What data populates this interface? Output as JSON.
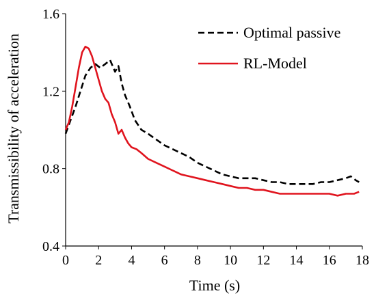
{
  "chart_data": {
    "type": "line",
    "title": "",
    "xlabel": "Time (s)",
    "ylabel": "Transmissibility of acceleration",
    "xlim": [
      0,
      18
    ],
    "ylim": [
      0.4,
      1.6
    ],
    "x_ticks": [
      0,
      2,
      4,
      6,
      8,
      10,
      12,
      14,
      16,
      18
    ],
    "x_tick_labels": [
      "0",
      "2",
      "4",
      "6",
      "8",
      "10",
      "12",
      "14",
      "16",
      "18"
    ],
    "y_ticks": [
      0.4,
      0.8,
      1.2,
      1.6
    ],
    "y_tick_labels": [
      "0.4",
      "0.8",
      "1.2",
      "1.6"
    ],
    "grid": false,
    "legend_position": "top-right",
    "series": [
      {
        "name": "Optimal passive",
        "color": "#000000",
        "style": "dashed",
        "x": [
          0,
          0.3,
          0.6,
          0.9,
          1.2,
          1.5,
          1.8,
          2.1,
          2.4,
          2.7,
          3.0,
          3.2,
          3.4,
          3.6,
          3.9,
          4.2,
          4.6,
          5.0,
          5.5,
          6.0,
          6.5,
          7.0,
          7.5,
          8.0,
          8.5,
          9.0,
          9.5,
          10.0,
          10.5,
          11.0,
          11.5,
          12.0,
          12.5,
          13.0,
          13.5,
          14.0,
          14.5,
          15.0,
          15.5,
          16.0,
          16.5,
          17.0,
          17.3,
          17.6,
          17.8
        ],
        "y": [
          0.98,
          1.05,
          1.12,
          1.2,
          1.28,
          1.32,
          1.34,
          1.32,
          1.34,
          1.36,
          1.3,
          1.33,
          1.24,
          1.18,
          1.12,
          1.05,
          1.0,
          0.98,
          0.95,
          0.92,
          0.9,
          0.88,
          0.86,
          0.83,
          0.81,
          0.79,
          0.77,
          0.76,
          0.75,
          0.75,
          0.75,
          0.74,
          0.73,
          0.73,
          0.72,
          0.72,
          0.72,
          0.72,
          0.73,
          0.73,
          0.74,
          0.75,
          0.76,
          0.74,
          0.73
        ]
      },
      {
        "name": "RL-Model",
        "color": "#e0141e",
        "style": "solid",
        "x": [
          0,
          0.2,
          0.4,
          0.6,
          0.8,
          1.0,
          1.2,
          1.4,
          1.6,
          1.8,
          2.0,
          2.2,
          2.4,
          2.6,
          2.8,
          3.0,
          3.2,
          3.4,
          3.6,
          3.8,
          4.0,
          4.3,
          4.6,
          5.0,
          5.5,
          6.0,
          6.5,
          7.0,
          7.5,
          8.0,
          8.5,
          9.0,
          9.5,
          10.0,
          10.5,
          11.0,
          11.5,
          12.0,
          12.5,
          13.0,
          13.5,
          14.0,
          14.5,
          15.0,
          15.5,
          16.0,
          16.5,
          17.0,
          17.5,
          17.8
        ],
        "y": [
          1.0,
          1.04,
          1.12,
          1.22,
          1.32,
          1.4,
          1.43,
          1.42,
          1.38,
          1.32,
          1.26,
          1.2,
          1.16,
          1.14,
          1.08,
          1.04,
          0.98,
          1.0,
          0.96,
          0.93,
          0.91,
          0.9,
          0.88,
          0.85,
          0.83,
          0.81,
          0.79,
          0.77,
          0.76,
          0.75,
          0.74,
          0.73,
          0.72,
          0.71,
          0.7,
          0.7,
          0.69,
          0.69,
          0.68,
          0.67,
          0.67,
          0.67,
          0.67,
          0.67,
          0.67,
          0.67,
          0.66,
          0.67,
          0.67,
          0.68
        ]
      }
    ]
  }
}
